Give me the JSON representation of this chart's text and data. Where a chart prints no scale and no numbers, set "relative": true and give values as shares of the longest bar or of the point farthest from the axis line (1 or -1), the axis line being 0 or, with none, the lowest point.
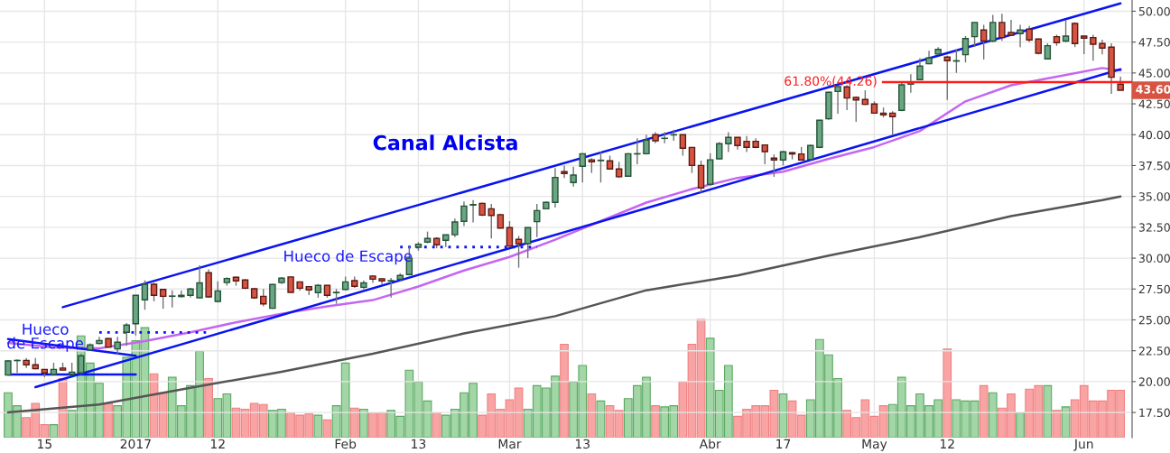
{
  "chart_data": [
    {
      "type": "candlestick",
      "categories": [
        null,
        null,
        null,
        null,
        "15",
        null,
        null,
        null,
        null,
        null,
        null,
        null,
        null,
        null,
        "2017",
        null,
        null,
        null,
        null,
        null,
        null,
        null,
        null,
        "12",
        null,
        null,
        null,
        null,
        null,
        null,
        null,
        null,
        null,
        null,
        null,
        null,
        null,
        "Feb",
        null,
        null,
        null,
        null,
        null,
        null,
        null,
        "13",
        null,
        null,
        null,
        null,
        null,
        null,
        null,
        null,
        null,
        "Mar",
        null,
        null,
        null,
        null,
        null,
        null,
        null,
        "13",
        null,
        null,
        null,
        null,
        null,
        null,
        null,
        null,
        null,
        null,
        null,
        null,
        null,
        "Abr",
        null,
        null,
        null,
        null,
        null,
        null,
        null,
        "17",
        null,
        null,
        null,
        null,
        null,
        null,
        null,
        null,
        null,
        "May",
        null,
        null,
        null,
        null,
        null,
        null,
        null,
        "12",
        null,
        null,
        null,
        null,
        null,
        null,
        null,
        null,
        null,
        null,
        null,
        null,
        null,
        null,
        "Jun",
        null,
        null,
        null,
        null
      ],
      "ohlc": [
        [
          20.53,
          21.75,
          20.5,
          21.67
        ],
        [
          21.7,
          21.8,
          20.7,
          21.72
        ],
        [
          21.72,
          21.91,
          21.11,
          21.36
        ],
        [
          21.36,
          21.91,
          21.0,
          21.04
        ],
        [
          20.99,
          21.0,
          20.36,
          20.7
        ],
        [
          20.58,
          21.53,
          20.58,
          20.99
        ],
        [
          21.1,
          21.53,
          20.9,
          20.93
        ],
        [
          20.58,
          21.53,
          20.5,
          20.77
        ],
        [
          20.7,
          22.24,
          20.6,
          22.09
        ],
        [
          22.57,
          23.09,
          22.5,
          22.97
        ],
        [
          23.09,
          23.63,
          23.0,
          23.33
        ],
        [
          23.48,
          23.55,
          22.8,
          22.8
        ],
        [
          22.65,
          23.63,
          22.16,
          23.19
        ],
        [
          23.99,
          24.75,
          22.9,
          24.58
        ],
        [
          24.69,
          26.99,
          23.74,
          26.99
        ],
        [
          26.62,
          28.2,
          25.82,
          27.89
        ],
        [
          27.89,
          28.0,
          26.5,
          26.99
        ],
        [
          27.47,
          27.5,
          25.9,
          26.91
        ],
        [
          26.91,
          27.4,
          26.0,
          26.93
        ],
        [
          26.89,
          27.37,
          26.8,
          26.99
        ],
        [
          26.99,
          27.6,
          26.8,
          27.5
        ],
        [
          26.79,
          29.42,
          26.75,
          28.0
        ],
        [
          28.82,
          29.1,
          26.8,
          26.86
        ],
        [
          26.5,
          28.13,
          26.4,
          27.35
        ],
        [
          28.02,
          28.45,
          27.77,
          28.35
        ],
        [
          28.45,
          28.5,
          27.77,
          28.16
        ],
        [
          28.23,
          28.3,
          27.5,
          27.57
        ],
        [
          27.52,
          27.6,
          26.7,
          26.79
        ],
        [
          26.91,
          27.5,
          26.1,
          26.3
        ],
        [
          25.94,
          27.9,
          25.9,
          27.87
        ],
        [
          28.02,
          28.47,
          27.9,
          28.38
        ],
        [
          28.48,
          28.5,
          27.2,
          27.23
        ],
        [
          28.08,
          28.1,
          27.35,
          27.57
        ],
        [
          27.69,
          27.7,
          27.0,
          27.43
        ],
        [
          27.21,
          27.9,
          26.8,
          27.79
        ],
        [
          27.79,
          27.8,
          26.8,
          26.99
        ],
        [
          27.2,
          27.5,
          26.3,
          27.23
        ],
        [
          27.47,
          28.5,
          27.4,
          28.08
        ],
        [
          28.18,
          28.5,
          27.6,
          27.72
        ],
        [
          27.64,
          28.2,
          27.5,
          28.0
        ],
        [
          28.55,
          28.6,
          28.0,
          28.3
        ],
        [
          28.33,
          28.4,
          27.9,
          28.16
        ],
        [
          28.15,
          28.4,
          26.8,
          28.18
        ],
        [
          28.3,
          28.79,
          28.2,
          28.6
        ],
        [
          28.67,
          30.94,
          28.6,
          30.0
        ],
        [
          30.88,
          31.3,
          30.6,
          31.13
        ],
        [
          31.3,
          32.15,
          31.2,
          31.6
        ],
        [
          31.6,
          31.7,
          30.8,
          31.08
        ],
        [
          31.45,
          31.9,
          30.9,
          31.89
        ],
        [
          31.9,
          33.2,
          31.7,
          32.93
        ],
        [
          32.98,
          34.6,
          32.6,
          34.22
        ],
        [
          34.3,
          34.7,
          32.9,
          34.34
        ],
        [
          34.44,
          34.5,
          33.4,
          33.49
        ],
        [
          34.0,
          34.4,
          31.6,
          33.46
        ],
        [
          33.52,
          33.6,
          32.4,
          32.44
        ],
        [
          32.47,
          33.0,
          30.9,
          30.98
        ],
        [
          31.52,
          31.8,
          29.23,
          31.18
        ],
        [
          31.18,
          32.5,
          30.0,
          32.47
        ],
        [
          32.96,
          34.4,
          31.7,
          33.85
        ],
        [
          34.0,
          34.6,
          34.0,
          34.52
        ],
        [
          34.52,
          37.3,
          34.1,
          36.54
        ],
        [
          37.0,
          37.5,
          36.5,
          36.86
        ],
        [
          36.13,
          37.4,
          35.8,
          36.73
        ],
        [
          37.44,
          38.5,
          36.13,
          38.46
        ],
        [
          37.96,
          38.1,
          36.9,
          37.81
        ],
        [
          37.9,
          38.6,
          36.13,
          37.93
        ],
        [
          37.88,
          38.3,
          37.2,
          37.22
        ],
        [
          37.22,
          37.8,
          36.5,
          36.59
        ],
        [
          36.64,
          38.5,
          36.6,
          38.46
        ],
        [
          38.44,
          39.7,
          37.6,
          38.46
        ],
        [
          38.46,
          40.0,
          38.4,
          39.56
        ],
        [
          40.0,
          40.2,
          39.3,
          39.51
        ],
        [
          39.7,
          40.2,
          39.3,
          39.71
        ],
        [
          39.98,
          40.4,
          39.5,
          40.0
        ],
        [
          40.0,
          40.0,
          38.3,
          38.9
        ],
        [
          38.97,
          39.0,
          36.9,
          37.51
        ],
        [
          37.51,
          37.9,
          35.3,
          35.69
        ],
        [
          35.98,
          38.5,
          35.9,
          37.96
        ],
        [
          38.05,
          39.4,
          38.0,
          39.27
        ],
        [
          39.27,
          40.2,
          38.6,
          39.78
        ],
        [
          39.78,
          39.8,
          38.8,
          39.12
        ],
        [
          39.46,
          39.9,
          38.6,
          38.98
        ],
        [
          39.46,
          39.7,
          38.9,
          38.98
        ],
        [
          39.17,
          39.2,
          37.6,
          38.63
        ],
        [
          38.1,
          38.4,
          36.59,
          37.95
        ],
        [
          37.95,
          38.7,
          37.5,
          38.61
        ],
        [
          38.54,
          38.6,
          38.0,
          38.44
        ],
        [
          38.44,
          39.0,
          37.9,
          37.95
        ],
        [
          38.0,
          39.2,
          37.9,
          39.12
        ],
        [
          38.98,
          41.2,
          38.9,
          41.17
        ],
        [
          41.29,
          43.5,
          41.2,
          43.44
        ],
        [
          43.5,
          44.0,
          41.7,
          43.9
        ],
        [
          43.87,
          44.0,
          42.0,
          42.97
        ],
        [
          43.02,
          43.1,
          41.05,
          42.82
        ],
        [
          42.85,
          43.6,
          42.4,
          42.46
        ],
        [
          42.49,
          42.7,
          41.7,
          41.75
        ],
        [
          41.75,
          42.2,
          41.4,
          41.61
        ],
        [
          41.75,
          41.9,
          40.0,
          41.46
        ],
        [
          41.97,
          44.3,
          41.9,
          44.04
        ],
        [
          44.09,
          44.9,
          43.4,
          44.24
        ],
        [
          44.46,
          46.2,
          44.4,
          45.56
        ],
        [
          45.75,
          46.8,
          45.7,
          46.21
        ],
        [
          46.53,
          47.1,
          46.5,
          46.91
        ],
        [
          46.29,
          46.4,
          42.82,
          45.99
        ],
        [
          45.96,
          46.9,
          45.01,
          45.99
        ],
        [
          46.48,
          47.99,
          45.85,
          47.79
        ],
        [
          47.94,
          49.1,
          47.1,
          49.09
        ],
        [
          48.48,
          48.9,
          46.09,
          47.58
        ],
        [
          47.58,
          49.7,
          47.5,
          49.09
        ],
        [
          49.09,
          49.8,
          47.6,
          47.87
        ],
        [
          48.28,
          49.3,
          48.0,
          48.06
        ],
        [
          48.19,
          48.9,
          47.1,
          48.48
        ],
        [
          48.55,
          48.8,
          47.5,
          47.68
        ],
        [
          47.75,
          47.8,
          46.5,
          46.6
        ],
        [
          46.14,
          47.4,
          46.1,
          47.21
        ],
        [
          47.94,
          48.1,
          47.2,
          47.46
        ],
        [
          47.58,
          49.3,
          47.5,
          47.99
        ],
        [
          49.01,
          49.1,
          47.1,
          47.38
        ],
        [
          47.99,
          48.0,
          46.53,
          47.82
        ],
        [
          47.87,
          48.1,
          46.0,
          47.33
        ],
        [
          47.38,
          47.7,
          46.5,
          47.02
        ],
        [
          47.09,
          47.4,
          43.31,
          44.65
        ],
        [
          44.09,
          44.7,
          43.6,
          43.6
        ]
      ],
      "series": [
        {
          "type": "line",
          "color": "#c466f2",
          "line_style": "solid",
          "values": [
            23.14,
            null,
            null,
            null,
            null,
            22.77,
            null,
            null,
            null,
            null,
            22.7,
            null,
            null,
            null,
            null,
            23.28,
            null,
            null,
            null,
            null,
            24.0,
            null,
            null,
            null,
            null,
            24.8,
            null,
            null,
            null,
            null,
            25.5,
            null,
            null,
            null,
            null,
            26.1,
            null,
            null,
            null,
            null,
            26.6,
            null,
            null,
            null,
            null,
            27.7,
            null,
            null,
            null,
            null,
            29.0,
            null,
            null,
            null,
            null,
            30.1,
            null,
            null,
            null,
            null,
            31.5,
            null,
            null,
            null,
            null,
            33.0,
            null,
            null,
            null,
            null,
            34.5,
            null,
            null,
            null,
            null,
            35.6,
            null,
            null,
            null,
            null,
            36.5,
            null,
            null,
            null,
            null,
            37.0,
            null,
            null,
            null,
            null,
            38.05,
            null,
            null,
            null,
            null,
            39.0,
            null,
            null,
            null,
            null,
            40.3,
            null,
            null,
            null,
            null,
            42.7,
            null,
            null,
            null,
            null,
            44.0,
            null,
            null,
            null,
            null,
            44.7,
            null,
            null,
            null,
            null,
            45.4,
            null,
            45.2
          ]
        },
        {
          "type": "line",
          "color": "#555555",
          "line_style": "solid",
          "values": [
            17.5,
            null,
            null,
            null,
            null,
            null,
            null,
            null,
            null,
            null,
            18.15,
            null,
            null,
            null,
            null,
            null,
            null,
            null,
            null,
            null,
            19.5,
            null,
            null,
            null,
            null,
            null,
            null,
            null,
            null,
            null,
            20.8,
            null,
            null,
            null,
            null,
            null,
            null,
            null,
            null,
            null,
            22.26,
            null,
            null,
            null,
            null,
            null,
            null,
            null,
            null,
            null,
            23.9,
            null,
            null,
            null,
            null,
            null,
            null,
            null,
            null,
            null,
            25.3,
            null,
            null,
            null,
            null,
            null,
            null,
            null,
            null,
            null,
            27.4,
            null,
            null,
            null,
            null,
            null,
            null,
            null,
            null,
            null,
            28.6,
            null,
            null,
            null,
            null,
            null,
            null,
            null,
            null,
            null,
            30.2,
            null,
            null,
            null,
            null,
            null,
            null,
            null,
            null,
            null,
            31.7,
            null,
            null,
            null,
            null,
            null,
            null,
            null,
            null,
            null,
            33.4,
            null,
            null,
            null,
            null,
            null,
            null,
            null,
            null,
            null,
            34.7,
            null,
            35.0
          ]
        },
        {
          "type": "line",
          "color": "#0a14f0",
          "line_style": "solid",
          "values": [
            null,
            null,
            null,
            null,
            null,
            null,
            26.03,
            null,
            null,
            null,
            null,
            null,
            null,
            null,
            null,
            null,
            null,
            null,
            null,
            null,
            null,
            null,
            null,
            null,
            null,
            null,
            null,
            null,
            null,
            null,
            null,
            null,
            null,
            null,
            null,
            null,
            null,
            null,
            null,
            null,
            null,
            null,
            null,
            null,
            null,
            null,
            null,
            null,
            null,
            null,
            null,
            null,
            null,
            null,
            null,
            null,
            null,
            null,
            null,
            null,
            null,
            null,
            null,
            null,
            null,
            null,
            null,
            null,
            null,
            null,
            null,
            null,
            null,
            null,
            null,
            null,
            null,
            null,
            null,
            null,
            null,
            null,
            null,
            null,
            null,
            null,
            null,
            null,
            null,
            null,
            null,
            null,
            null,
            null,
            null,
            null,
            null,
            null,
            null,
            null,
            null,
            null,
            null,
            null,
            null,
            null,
            null,
            null,
            null,
            null,
            null,
            null,
            null,
            null,
            null,
            null,
            null,
            null,
            null,
            null,
            null,
            null,
            50.64
          ]
        },
        {
          "type": "line",
          "color": "#0a14f0",
          "line_style": "solid",
          "values": [
            null,
            null,
            null,
            19.55,
            null,
            null,
            null,
            null,
            null,
            null,
            null,
            null,
            null,
            null,
            null,
            null,
            null,
            null,
            null,
            null,
            null,
            null,
            null,
            null,
            null,
            null,
            null,
            null,
            null,
            null,
            null,
            null,
            null,
            null,
            null,
            null,
            null,
            null,
            null,
            null,
            null,
            null,
            null,
            null,
            null,
            null,
            null,
            null,
            null,
            null,
            null,
            null,
            null,
            null,
            null,
            null,
            null,
            null,
            null,
            null,
            null,
            null,
            null,
            null,
            null,
            null,
            null,
            null,
            null,
            null,
            null,
            null,
            null,
            null,
            null,
            null,
            null,
            null,
            null,
            null,
            null,
            null,
            null,
            null,
            null,
            null,
            null,
            null,
            null,
            null,
            null,
            null,
            null,
            null,
            null,
            null,
            null,
            null,
            null,
            null,
            null,
            null,
            null,
            null,
            null,
            null,
            null,
            null,
            null,
            null,
            null,
            null,
            null,
            null,
            null,
            null,
            null,
            null,
            null,
            null,
            null,
            null,
            45.3
          ]
        },
        {
          "type": "line",
          "color": "#0a14f0",
          "line_style": "solid",
          "values": [
            23.45,
            null,
            null,
            null,
            null,
            null,
            null,
            null,
            null,
            null,
            null,
            null,
            null,
            null,
            22.1,
            null,
            null,
            null,
            null,
            null,
            null,
            null,
            null,
            null,
            null,
            null,
            null,
            null,
            null,
            null,
            null,
            null,
            null,
            null,
            null,
            null,
            null,
            null,
            null,
            null,
            null,
            null,
            null,
            null,
            null,
            null,
            null,
            null,
            null,
            null,
            null,
            null,
            null,
            null,
            null,
            null,
            null,
            null,
            null,
            null,
            null,
            null,
            null,
            null,
            null,
            null,
            null,
            null,
            null,
            null,
            null,
            null,
            null,
            null,
            null,
            null,
            null,
            null,
            null,
            null,
            null,
            null,
            null,
            null,
            null,
            null,
            null,
            null,
            null,
            null,
            null,
            null,
            null,
            null,
            null,
            null,
            null,
            null,
            null,
            null,
            null,
            null,
            null,
            null,
            null,
            null,
            null,
            null,
            null,
            null,
            null,
            null,
            null,
            null,
            null,
            null,
            null,
            null,
            null,
            null,
            null,
            null,
            null
          ]
        },
        {
          "type": "line",
          "color": "#0a14f0",
          "line_style": "solid",
          "values": [
            20.58,
            null,
            null,
            null,
            null,
            null,
            null,
            null,
            null,
            null,
            null,
            null,
            null,
            null,
            20.58,
            null,
            null,
            null,
            null,
            null,
            null,
            null,
            null,
            null,
            null,
            null,
            null,
            null,
            null,
            null,
            null,
            null,
            null,
            null,
            null,
            null,
            null,
            null,
            null,
            null,
            null,
            null,
            null,
            null,
            null,
            null,
            null,
            null,
            null,
            null,
            null,
            null,
            null,
            null,
            null,
            null,
            null,
            null,
            null,
            null,
            null,
            null,
            null,
            null,
            null,
            null,
            null,
            null,
            null,
            null,
            null,
            null,
            null,
            null,
            null,
            null,
            null,
            null,
            null,
            null,
            null,
            null,
            null,
            null,
            null,
            null,
            null,
            null,
            null,
            null,
            null,
            null,
            null,
            null,
            null,
            null,
            null,
            null,
            null,
            null,
            null,
            null,
            null,
            null,
            null,
            null,
            null,
            null,
            null,
            null,
            null,
            null,
            null,
            null,
            null,
            null,
            null,
            null,
            null,
            null,
            null,
            null,
            null
          ]
        },
        {
          "type": "line",
          "color": "#0a14f0",
          "line_style": "dotted",
          "values": [
            null,
            null,
            null,
            null,
            null,
            null,
            null,
            null,
            null,
            null,
            23.99,
            null,
            null,
            null,
            null,
            null,
            null,
            null,
            null,
            null,
            null,
            null,
            23.99,
            null,
            null,
            null,
            null,
            null,
            null,
            null,
            null,
            null,
            null,
            null,
            null,
            null,
            null,
            null,
            null,
            null,
            null,
            null,
            null,
            null,
            null,
            null,
            null,
            null,
            null,
            null,
            null,
            null,
            null,
            null,
            null,
            null,
            null,
            null,
            null,
            null,
            null,
            null,
            null,
            null,
            null,
            null,
            null,
            null,
            null,
            null,
            null,
            null,
            null,
            null,
            null,
            null,
            null,
            null,
            null,
            null,
            null,
            null,
            null,
            null,
            null,
            null,
            null,
            null,
            null,
            null,
            null,
            null,
            null,
            null,
            null,
            null,
            null,
            null,
            null,
            null,
            null,
            null,
            null,
            null,
            null,
            null,
            null,
            null,
            null,
            null,
            null,
            null,
            null,
            null,
            null,
            null,
            null,
            null,
            null,
            null,
            null,
            null,
            null
          ]
        },
        {
          "type": "line",
          "color": "#0a14f0",
          "line_style": "dotted",
          "values": [
            null,
            null,
            null,
            null,
            null,
            null,
            null,
            null,
            null,
            null,
            null,
            null,
            null,
            null,
            null,
            null,
            null,
            null,
            null,
            null,
            null,
            null,
            null,
            null,
            null,
            null,
            null,
            null,
            null,
            null,
            null,
            null,
            null,
            null,
            null,
            null,
            null,
            null,
            null,
            null,
            null,
            null,
            null,
            30.9,
            null,
            null,
            null,
            null,
            null,
            null,
            null,
            null,
            null,
            null,
            null,
            null,
            null,
            null,
            30.9,
            null,
            null,
            null,
            null,
            null,
            null,
            null,
            null,
            null,
            null,
            null,
            null,
            null,
            null,
            null,
            null,
            null,
            null,
            null,
            null,
            null,
            null,
            null,
            null,
            null,
            null,
            null,
            null,
            null,
            null,
            null,
            null,
            null,
            null,
            null,
            null,
            null,
            null,
            null,
            null,
            null,
            null,
            null,
            null,
            null,
            null,
            null,
            null,
            null,
            null,
            null,
            null,
            null,
            null,
            null,
            null,
            null,
            null,
            null,
            null,
            null,
            null,
            null,
            null
          ]
        }
      ],
      "ref_lines": [
        {
          "axis": "y",
          "value": 44.26,
          "label": "61.80%(44.26)",
          "color": "#ff1a1a"
        }
      ],
      "annotations": [
        "Canal Alcista",
        "Hueco de Escape",
        "Hueco\nde Escape",
        "43.60"
      ],
      "ylim": [
        15.46,
        50.91
      ],
      "yticks": [
        {
          "value": 17.5,
          "label": "17.50"
        },
        {
          "value": 20,
          "label": "20.00"
        },
        {
          "value": 22.5,
          "label": "22.50"
        },
        {
          "value": 25,
          "label": "25.00"
        },
        {
          "value": 27.5,
          "label": "27.50"
        },
        {
          "value": 30,
          "label": "30.00"
        },
        {
          "value": 32.5,
          "label": "32.50"
        },
        {
          "value": 35,
          "label": "35.00"
        },
        {
          "value": 37.5,
          "label": "37.50"
        },
        {
          "value": 40,
          "label": "40.00"
        },
        {
          "value": 42.5,
          "label": "42.50"
        },
        {
          "value": 45,
          "label": "45.00"
        },
        {
          "value": 47.5,
          "label": "47.50"
        },
        {
          "value": 50,
          "label": "50.00"
        }
      ],
      "grid": true
    },
    {
      "type": "bar",
      "relative": true,
      "categories": [
        null,
        null,
        null,
        null,
        null,
        null,
        null,
        null,
        null,
        null,
        null,
        null,
        null,
        null,
        null,
        null,
        null,
        null,
        null,
        null,
        null,
        null,
        null,
        null,
        null,
        null,
        null,
        null,
        null,
        null,
        null,
        null,
        null,
        null,
        null,
        null,
        null,
        null,
        null,
        null,
        null,
        null,
        null,
        null,
        null,
        null,
        null,
        null,
        null,
        null,
        null,
        null,
        null,
        null,
        null,
        null,
        null,
        null,
        null,
        null,
        null,
        null,
        null,
        null,
        null,
        null,
        null,
        null,
        null,
        null,
        null,
        null,
        null,
        null,
        null,
        null,
        null,
        null,
        null,
        null,
        null,
        null,
        null,
        null,
        null,
        null,
        null,
        null,
        null,
        null,
        null,
        null,
        null,
        null,
        null,
        null,
        null,
        null,
        null,
        null,
        null,
        null,
        null,
        null,
        null,
        null,
        null,
        null,
        null,
        null,
        null,
        null,
        null,
        null,
        null,
        null,
        null,
        null,
        null,
        null,
        null,
        null,
        null
      ],
      "values": [
        0.38,
        0.27,
        0.17,
        0.29,
        0.11,
        0.11,
        0.5,
        0.23,
        0.86,
        0.63,
        0.46,
        0.29,
        0.27,
        0.68,
        0.82,
        0.93,
        0.54,
        0.38,
        0.51,
        0.27,
        0.44,
        0.73,
        0.5,
        0.33,
        0.37,
        0.25,
        0.24,
        0.29,
        0.28,
        0.23,
        0.24,
        0.21,
        0.19,
        0.2,
        0.19,
        0.15,
        0.27,
        0.63,
        0.25,
        0.24,
        0.21,
        0.21,
        0.23,
        0.18,
        0.57,
        0.47,
        0.31,
        0.21,
        0.19,
        0.24,
        0.38,
        0.46,
        0.19,
        0.37,
        0.24,
        0.32,
        0.42,
        0.24,
        0.44,
        0.42,
        0.52,
        0.79,
        0.47,
        0.61,
        0.37,
        0.31,
        0.27,
        0.23,
        0.33,
        0.44,
        0.51,
        0.27,
        0.26,
        0.27,
        0.47,
        0.79,
        1,
        0.84,
        0.4,
        0.61,
        0.18,
        0.24,
        0.27,
        0.27,
        0.4,
        0.37,
        0.31,
        0.19,
        0.32,
        0.83,
        0.7,
        0.5,
        0.23,
        0.17,
        0.32,
        0.18,
        0.27,
        0.28,
        0.51,
        0.27,
        0.37,
        0.27,
        0.32,
        0.75,
        0.32,
        0.31,
        0.31,
        0.44,
        0.38,
        0.25,
        0.37,
        0.21,
        0.41,
        0.44,
        0.44,
        0.23,
        0.26,
        0.32,
        0.44,
        0.31,
        0.31,
        0.4,
        0.4
      ],
      "colors": [
        "#a3d6a6",
        "#a3d6a6",
        "#f8a4a4",
        "#f8a4a4",
        "#f8a4a4",
        "#a3d6a6",
        "#f8a4a4",
        "#a3d6a6",
        "#a3d6a6",
        "#a3d6a6",
        "#a3d6a6",
        "#f8a4a4",
        "#a3d6a6",
        "#a3d6a6",
        "#a3d6a6",
        "#a3d6a6",
        "#f8a4a4",
        "#f8a4a4",
        "#a3d6a6",
        "#a3d6a6",
        "#a3d6a6",
        "#a3d6a6",
        "#f8a4a4",
        "#a3d6a6",
        "#a3d6a6",
        "#f8a4a4",
        "#f8a4a4",
        "#f8a4a4",
        "#f8a4a4",
        "#a3d6a6",
        "#a3d6a6",
        "#f8a4a4",
        "#f8a4a4",
        "#f8a4a4",
        "#a3d6a6",
        "#f8a4a4",
        "#a3d6a6",
        "#a3d6a6",
        "#f8a4a4",
        "#a3d6a6",
        "#f8a4a4",
        "#f8a4a4",
        "#a3d6a6",
        "#a3d6a6",
        "#a3d6a6",
        "#a3d6a6",
        "#a3d6a6",
        "#f8a4a4",
        "#a3d6a6",
        "#a3d6a6",
        "#a3d6a6",
        "#a3d6a6",
        "#f8a4a4",
        "#f8a4a4",
        "#f8a4a4",
        "#f8a4a4",
        "#f8a4a4",
        "#a3d6a6",
        "#a3d6a6",
        "#a3d6a6",
        "#a3d6a6",
        "#f8a4a4",
        "#a3d6a6",
        "#a3d6a6",
        "#f8a4a4",
        "#a3d6a6",
        "#f8a4a4",
        "#f8a4a4",
        "#a3d6a6",
        "#a3d6a6",
        "#a3d6a6",
        "#f8a4a4",
        "#a3d6a6",
        "#a3d6a6",
        "#f8a4a4",
        "#f8a4a4",
        "#f8a4a4",
        "#a3d6a6",
        "#a3d6a6",
        "#a3d6a6",
        "#f8a4a4",
        "#f8a4a4",
        "#f8a4a4",
        "#f8a4a4",
        "#f8a4a4",
        "#a3d6a6",
        "#f8a4a4",
        "#f8a4a4",
        "#a3d6a6",
        "#a3d6a6",
        "#a3d6a6",
        "#a3d6a6",
        "#f8a4a4",
        "#f8a4a4",
        "#f8a4a4",
        "#f8a4a4",
        "#f8a4a4",
        "#a3d6a6",
        "#a3d6a6",
        "#a3d6a6",
        "#a3d6a6",
        "#a3d6a6",
        "#a3d6a6",
        "#f8a4a4",
        "#a3d6a6",
        "#a3d6a6",
        "#a3d6a6",
        "#f8a4a4",
        "#a3d6a6",
        "#f8a4a4",
        "#f8a4a4",
        "#a3d6a6",
        "#f8a4a4",
        "#f8a4a4",
        "#a3d6a6",
        "#f8a4a4",
        "#a3d6a6",
        "#f8a4a4",
        "#f8a4a4",
        "#f8a4a4",
        "#f8a4a4",
        "#f8a4a4",
        "#f8a4a4"
      ]
    }
  ]
}
